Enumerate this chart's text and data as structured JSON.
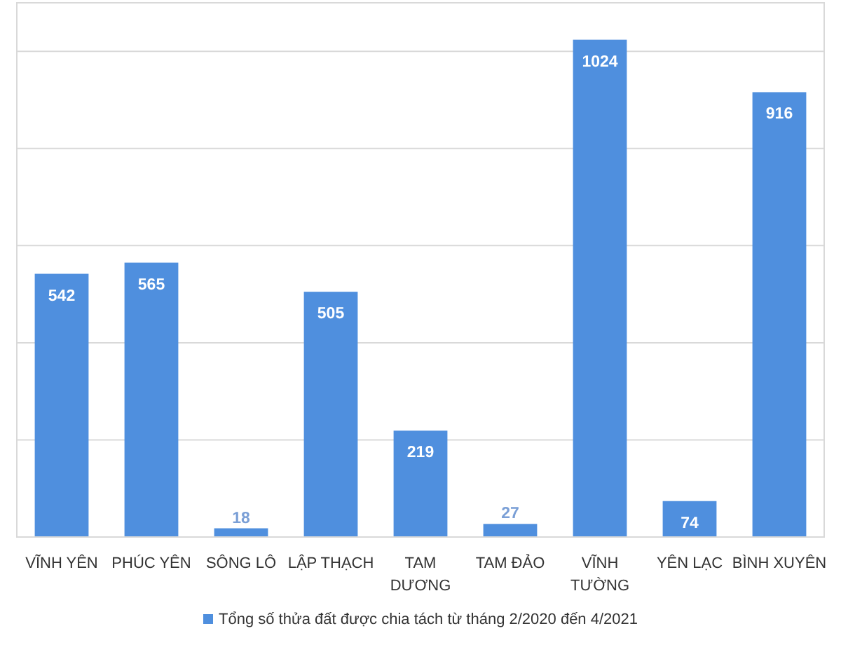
{
  "chart_data": {
    "type": "bar",
    "categories": [
      "VĨNH YÊN",
      "PHÚC YÊN",
      "SÔNG LÔ",
      "LẬP THẠCH",
      "TAM DƯƠNG",
      "TAM ĐẢO",
      "VĨNH TƯỜNG",
      "YÊN LẠC",
      "BÌNH XUYÊN"
    ],
    "series": [
      {
        "name": "Tổng số thửa đất được chia tách từ tháng 2/2020 đến 4/2021",
        "color": "#4f8fde",
        "values": [
          542,
          565,
          18,
          505,
          219,
          27,
          1024,
          74,
          916
        ]
      }
    ],
    "ylim": [
      0,
      1100
    ],
    "yticks": [
      {
        "value": 0,
        "label": null
      },
      {
        "value": 200,
        "label": null
      },
      {
        "value": 400,
        "label": null
      },
      {
        "value": 600,
        "label": null
      },
      {
        "value": 800,
        "label": null
      },
      {
        "value": 1000,
        "label": null
      }
    ],
    "grid": "y",
    "data_labels": true,
    "legend": "bottom"
  }
}
